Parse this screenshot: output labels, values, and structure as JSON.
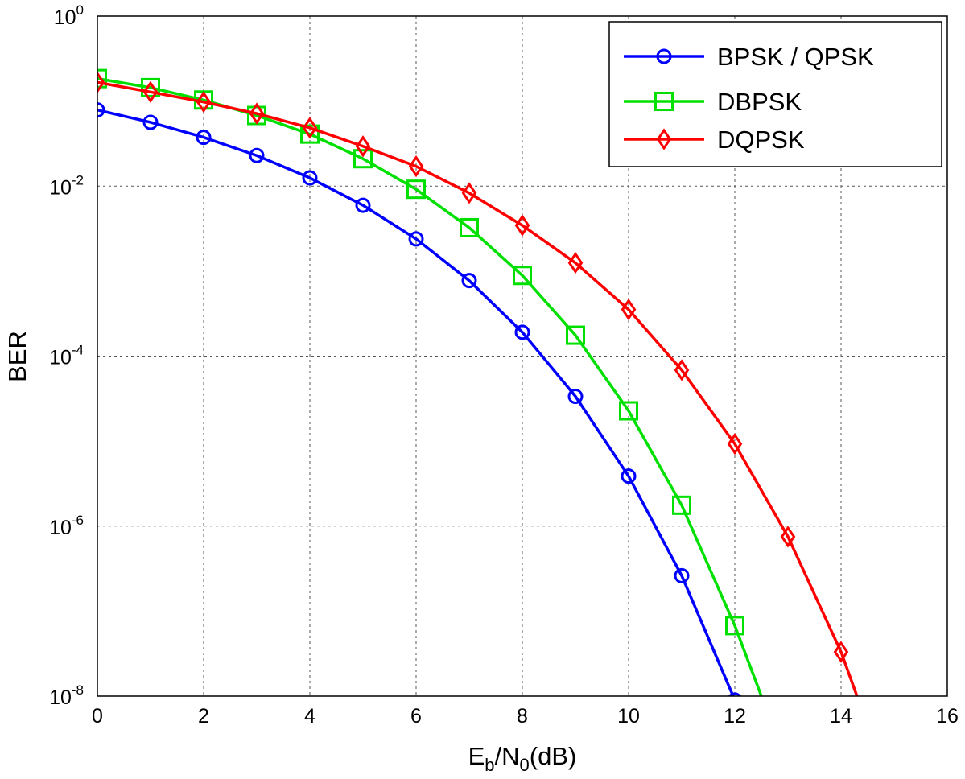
{
  "chart_data": {
    "type": "line",
    "title": "",
    "xlabel": {
      "main": "E",
      "sub1": "b",
      "mid": "/N",
      "sub2": "0",
      "tail": "(dB)"
    },
    "ylabel": "BER",
    "xlim": [
      0,
      16
    ],
    "ylim": [
      1e-08,
      1
    ],
    "yscale": "log",
    "grid": true,
    "legend_position": "top-right",
    "x_ticks": [
      0,
      2,
      4,
      6,
      8,
      10,
      12,
      14,
      16
    ],
    "x_tick_labels": [
      "0",
      "2",
      "4",
      "6",
      "8",
      "10",
      "12",
      "14",
      "16"
    ],
    "y_ticks": [
      {
        "value": 1,
        "base": "10",
        "exp": "0"
      },
      {
        "value": 0.01,
        "base": "10",
        "exp": "-2"
      },
      {
        "value": 0.0001,
        "base": "10",
        "exp": "-4"
      },
      {
        "value": 1e-06,
        "base": "10",
        "exp": "-6"
      },
      {
        "value": 1e-08,
        "base": "10",
        "exp": "-8"
      }
    ],
    "series": [
      {
        "name": "BPSK / QPSK",
        "color": "#0000ff",
        "marker": "circle",
        "x": [
          0,
          1,
          2,
          3,
          4,
          5,
          6,
          7,
          8,
          9,
          10,
          11,
          12,
          12.1
        ],
        "y": [
          0.0786,
          0.0563,
          0.0375,
          0.0229,
          0.0125,
          0.00595,
          0.00239,
          0.000773,
          0.000191,
          3.36e-05,
          3.87e-06,
          2.61e-07,
          9e-09,
          5.5e-09
        ],
        "marker_count": 13
      },
      {
        "name": "DBPSK",
        "color": "#00e000",
        "marker": "square",
        "x": [
          0,
          1,
          2,
          3,
          4,
          5,
          6,
          7,
          8,
          9,
          10,
          11,
          12,
          12.5
        ],
        "y": [
          0.184,
          0.144,
          0.103,
          0.0677,
          0.0409,
          0.021,
          0.00918,
          0.00324,
          0.000889,
          0.000176,
          2.27e-05,
          1.76e-06,
          6.75e-08,
          1e-08
        ],
        "marker_count": 13
      },
      {
        "name": "DQPSK",
        "color": "#ff0000",
        "marker": "diamond",
        "x": [
          0,
          1,
          2,
          3,
          4,
          5,
          6,
          7,
          8,
          9,
          10,
          11,
          12,
          13,
          14,
          14.3
        ],
        "y": [
          0.166,
          0.128,
          0.0977,
          0.0714,
          0.0485,
          0.0294,
          0.0171,
          0.00829,
          0.00345,
          0.00125,
          0.000353,
          6.85e-05,
          9.27e-06,
          7.51e-07,
          3.31e-08,
          1e-08
        ],
        "marker_count": 15
      }
    ]
  }
}
